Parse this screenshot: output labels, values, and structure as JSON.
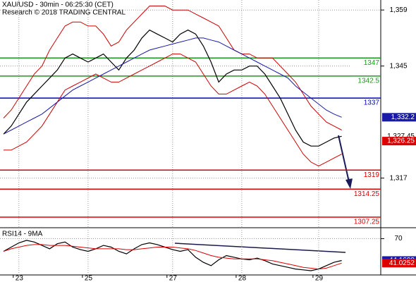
{
  "chart_data": [
    {
      "type": "line",
      "title": "XAU/USD - 30min - 06:25:30 (CET)",
      "subtitle": "Research © 2018 TRADING CENTRAL",
      "ylim": [
        1304.6,
        1361.5
      ],
      "yticks": [
        {
          "value": 1317,
          "label": "1,317"
        },
        {
          "value": 1345,
          "label": "1,345"
        },
        {
          "value": 1359,
          "label": "1,359"
        }
      ],
      "grid": true,
      "series": [
        {
          "color": "#000000",
          "values": [
            1328,
            1330,
            1333,
            1336,
            1338,
            1340,
            1342,
            1344,
            1347,
            1348,
            1347,
            1346,
            1347,
            1348,
            1346,
            1344,
            1347,
            1349,
            1352,
            1354,
            1353,
            1352,
            1351,
            1353,
            1354,
            1353,
            1350,
            1346,
            1341,
            1343,
            1344,
            1344,
            1345,
            1345,
            1343,
            1340,
            1337,
            1333,
            1329,
            1326,
            1325,
            1325,
            1326,
            1327,
            1327.45
          ]
        },
        {
          "color": "#cc0000",
          "values": [
            1332,
            1334,
            1337,
            1340,
            1343,
            1345,
            1349,
            1352,
            1355,
            1356,
            1356,
            1355,
            1355,
            1353,
            1350,
            1351,
            1354,
            1356,
            1358,
            1360,
            1360,
            1360,
            1359,
            1359,
            1359,
            1358,
            1357,
            1356,
            1355,
            1352,
            1349,
            1348,
            1348,
            1347,
            1347,
            1347,
            1345,
            1343,
            1341,
            1338,
            1335,
            1333,
            1331,
            1330,
            1329
          ]
        },
        {
          "color": "#cc0000",
          "values": [
            1324,
            1324,
            1325,
            1326,
            1328,
            1330,
            1333,
            1336,
            1339,
            1340,
            1341,
            1342,
            1343,
            1342,
            1341,
            1341,
            1342,
            1343,
            1344,
            1345,
            1346,
            1347,
            1348,
            1348,
            1347,
            1346,
            1343,
            1340,
            1338,
            1338,
            1339,
            1340,
            1341,
            1340,
            1338,
            1335,
            1332,
            1329,
            1326,
            1323,
            1321,
            1320,
            1321,
            1322,
            1323
          ]
        },
        {
          "color": "#1a1aa8",
          "values": [
            1328,
            1329,
            1330,
            1331,
            1332,
            1333,
            1334.5,
            1336,
            1337.5,
            1339,
            1340,
            1341,
            1342,
            1343,
            1344,
            1345,
            1346,
            1347,
            1348,
            1349,
            1349.5,
            1350,
            1350.5,
            1351,
            1351.5,
            1352,
            1352,
            1351.5,
            1351,
            1350,
            1349,
            1348,
            1347,
            1346,
            1345,
            1344,
            1343,
            1342,
            1340,
            1338.5,
            1337,
            1335.5,
            1334,
            1333,
            1332.2
          ]
        }
      ],
      "levels": [
        {
          "value": 1347,
          "color": "#1a9a1a"
        },
        {
          "value": 1342.5,
          "color": "#1a9a1a"
        },
        {
          "value": 1337,
          "color": "#0000cc"
        },
        {
          "value": 1319,
          "color": "#dd0000"
        },
        {
          "value": 1314.25,
          "color": "#dd0000"
        },
        {
          "value": 1307.25,
          "color": "#dd0000"
        }
      ],
      "price_labels": [
        {
          "value": 1332.2,
          "label": "1,332.2",
          "color": "#1a1aa8"
        },
        {
          "value": 1327.45,
          "label": "1,327.45",
          "color": "#000000"
        },
        {
          "value": 1326.25,
          "label": "1,326.25",
          "color": "#dd0000"
        }
      ]
    },
    {
      "type": "line",
      "title": "RSI14 - 9MA",
      "categories": [
        null,
        null,
        "23",
        null,
        null,
        null,
        null,
        null,
        null,
        null,
        null,
        "25",
        null,
        null,
        null,
        null,
        null,
        null,
        null,
        null,
        null,
        null,
        "27",
        null,
        null,
        null,
        null,
        null,
        null,
        null,
        null,
        "28",
        null,
        null,
        null,
        null,
        null,
        null,
        null,
        null,
        null,
        "29",
        null,
        null,
        null
      ],
      "ylim": [
        27,
        83
      ],
      "yticks": [
        70
      ],
      "grid": true,
      "series": [
        {
          "color": "#000000",
          "values": [
            55,
            60,
            65,
            68,
            66,
            62,
            58,
            64,
            66,
            60,
            57,
            55,
            58,
            62,
            60,
            55,
            52,
            58,
            63,
            65,
            63,
            60,
            57,
            55,
            57,
            48,
            42,
            38,
            45,
            50,
            48,
            46,
            45,
            47,
            44,
            40,
            38,
            36,
            34,
            33,
            32,
            34,
            38,
            42,
            44.1699
          ]
        },
        {
          "color": "#dd0000",
          "values": [
            55,
            58,
            60,
            62,
            63,
            63,
            62,
            62,
            62,
            61,
            60,
            59,
            58,
            58,
            58,
            58,
            57,
            57,
            58,
            59,
            60,
            60,
            60,
            59,
            58,
            56,
            53,
            50,
            48,
            47,
            46,
            46,
            46,
            46,
            45,
            44,
            42,
            40,
            38,
            36,
            35,
            34,
            35,
            38,
            41.0252
          ]
        }
      ],
      "last_labels": [
        {
          "value": 44.1699,
          "color": "#1a1aa8"
        },
        {
          "value": 41.0252,
          "color": "#dd0000"
        }
      ]
    }
  ]
}
